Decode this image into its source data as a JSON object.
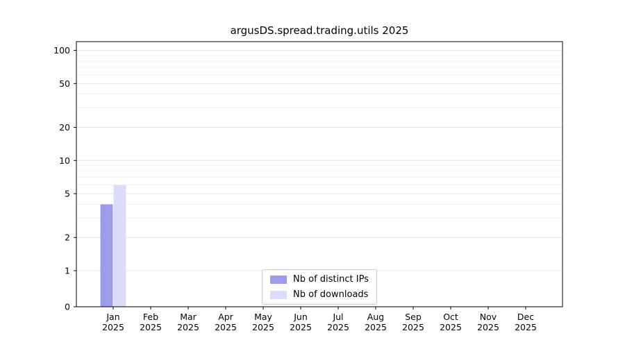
{
  "figure": {
    "background": "#ffffff"
  },
  "chart_data": {
    "type": "bar",
    "title": "argusDS.spread.trading.utils 2025",
    "categories": [
      "Jan 2025",
      "Feb 2025",
      "Mar 2025",
      "Apr 2025",
      "May 2025",
      "Jun 2025",
      "Jul 2025",
      "Aug 2025",
      "Sep 2025",
      "Oct 2025",
      "Nov 2025",
      "Dec 2025"
    ],
    "x_tick_labels": [
      [
        "Jan",
        "2025"
      ],
      [
        "Feb",
        "2025"
      ],
      [
        "Mar",
        "2025"
      ],
      [
        "Apr",
        "2025"
      ],
      [
        "May",
        "2025"
      ],
      [
        "Jun",
        "2025"
      ],
      [
        "Jul",
        "2025"
      ],
      [
        "Aug",
        "2025"
      ],
      [
        "Sep",
        "2025"
      ],
      [
        "Oct",
        "2025"
      ],
      [
        "Nov",
        "2025"
      ],
      [
        "Dec",
        "2025"
      ]
    ],
    "series": [
      {
        "name": "Nb of distinct IPs",
        "color": "#9c9cec",
        "values": [
          4,
          0,
          0,
          0,
          0,
          0,
          0,
          0,
          0,
          0,
          0,
          0
        ]
      },
      {
        "name": "Nb of downloads",
        "color": "#dcdcf8",
        "values": [
          6,
          0,
          0,
          0,
          0,
          0,
          0,
          0,
          0,
          0,
          0,
          0
        ]
      }
    ],
    "yscale": "symlog",
    "yticks": [
      0,
      1,
      2,
      5,
      10,
      20,
      50,
      100
    ],
    "ylim": [
      0,
      120
    ],
    "grid": true,
    "minor_gridlines": [
      2,
      3,
      4,
      6,
      7,
      8,
      9,
      20,
      30,
      40,
      60,
      70,
      80,
      90
    ],
    "legend_position": "lower center"
  }
}
